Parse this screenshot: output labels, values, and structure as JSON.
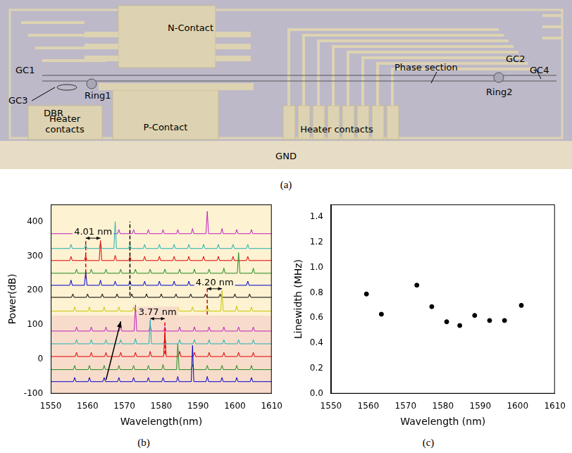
{
  "photo": {
    "caption": "(a)",
    "labels": [
      "N-Contact",
      "P-Contact",
      "Heater contacts",
      "Heater contacts",
      "GND",
      "GC1",
      "GC2",
      "GC3",
      "GC4",
      "Ring1",
      "Ring2",
      "DBR",
      "Phase section"
    ]
  },
  "chart_data": [
    {
      "type": "line",
      "caption": "(b)",
      "x_label": "Wavelength(nm)",
      "y_label": "Power(dB)",
      "xlim": [
        1550,
        1610
      ],
      "xticks": [
        1550,
        1560,
        1570,
        1580,
        1590,
        1600,
        1610
      ],
      "ylim": [
        -100,
        450
      ],
      "yticks": [
        -100,
        0,
        100,
        200,
        300,
        400
      ],
      "grid": false,
      "bands": [
        {
          "from": -100,
          "to": 128,
          "color": "#f8dccb"
        },
        {
          "from": 128,
          "to": 450,
          "color": "#fdf2d2"
        }
      ],
      "series": [
        {
          "color": "#0000cc",
          "baseline": -65,
          "peaks": [
            [
              1556.5,
              -53
            ],
            [
              1560.5,
              -53
            ],
            [
              1564.5,
              -53
            ],
            [
              1568.5,
              -53
            ],
            [
              1572.5,
              -53
            ],
            [
              1576.5,
              -53
            ],
            [
              1580.5,
              -53
            ],
            [
              1584.5,
              -50
            ],
            [
              1588.5,
              40
            ],
            [
              1592.5,
              -50
            ],
            [
              1596.5,
              -53
            ],
            [
              1600.5,
              -53
            ],
            [
              1604.5,
              -53
            ]
          ]
        },
        {
          "color": "#228b22",
          "baseline": -30,
          "peaks": [
            [
              1556.5,
              -18
            ],
            [
              1560.5,
              -18
            ],
            [
              1564.5,
              -18
            ],
            [
              1568.5,
              -18
            ],
            [
              1572.5,
              -18
            ],
            [
              1576.5,
              -18
            ],
            [
              1580.5,
              -15
            ],
            [
              1584.5,
              45
            ],
            [
              1588.5,
              -15
            ],
            [
              1592.5,
              -18
            ],
            [
              1596.5,
              -18
            ],
            [
              1600.5,
              -18
            ],
            [
              1604.5,
              -18
            ]
          ]
        },
        {
          "color": "#e00000",
          "baseline": 8,
          "peaks": [
            [
              1557,
              20
            ],
            [
              1561,
              20
            ],
            [
              1565,
              20
            ],
            [
              1569,
              20
            ],
            [
              1573,
              20
            ],
            [
              1577,
              23
            ],
            [
              1581,
              80
            ],
            [
              1585,
              23
            ],
            [
              1589,
              20
            ],
            [
              1593,
              20
            ],
            [
              1597,
              20
            ],
            [
              1601,
              20
            ],
            [
              1605,
              20
            ]
          ]
        },
        {
          "color": "#20b0b0",
          "baseline": 45,
          "peaks": [
            [
              1557,
              57
            ],
            [
              1561,
              57
            ],
            [
              1565,
              57
            ],
            [
              1569,
              57
            ],
            [
              1573,
              60
            ],
            [
              1577,
              115
            ],
            [
              1581,
              60
            ],
            [
              1585,
              57
            ],
            [
              1589,
              57
            ],
            [
              1593,
              57
            ],
            [
              1597,
              57
            ],
            [
              1601,
              57
            ],
            [
              1605,
              57
            ]
          ]
        },
        {
          "color": "#c020c0",
          "baseline": 82,
          "peaks": [
            [
              1557,
              94
            ],
            [
              1561,
              94
            ],
            [
              1565,
              94
            ],
            [
              1569,
              97
            ],
            [
              1573,
              158
            ],
            [
              1577,
              97
            ],
            [
              1581,
              94
            ],
            [
              1585,
              94
            ],
            [
              1589,
              94
            ],
            [
              1593,
              94
            ],
            [
              1597,
              94
            ],
            [
              1601,
              94
            ],
            [
              1605,
              94
            ]
          ]
        },
        {
          "color": "#c8c800",
          "baseline": 140,
          "peaks": [
            [
              1556.5,
              152
            ],
            [
              1560.5,
              152
            ],
            [
              1564.5,
              152
            ],
            [
              1568.5,
              152
            ],
            [
              1572.5,
              152
            ],
            [
              1576.5,
              152
            ],
            [
              1580.5,
              152
            ],
            [
              1584.5,
              152
            ],
            [
              1588.5,
              152
            ],
            [
              1592.5,
              155
            ],
            [
              1596.5,
              200
            ],
            [
              1600.5,
              155
            ],
            [
              1604.5,
              152
            ]
          ]
        },
        {
          "color": "#000000",
          "baseline": 180,
          "peaks": [
            [
              1556,
              190
            ],
            [
              1560,
              190
            ],
            [
              1564,
              190
            ],
            [
              1568,
              190
            ],
            [
              1572,
              190
            ],
            [
              1576,
              190
            ],
            [
              1580,
              190
            ],
            [
              1584,
              190
            ],
            [
              1588,
              190
            ],
            [
              1592,
              190
            ],
            [
              1596,
              190
            ],
            [
              1600,
              190
            ],
            [
              1604,
              190
            ]
          ]
        },
        {
          "color": "#0000cc",
          "baseline": 215,
          "peaks": [
            [
              1555.5,
              230
            ],
            [
              1559.5,
              255
            ],
            [
              1563.5,
              230
            ],
            [
              1567.5,
              227
            ],
            [
              1571.5,
              227
            ],
            [
              1575.5,
              227
            ],
            [
              1579.5,
              227
            ],
            [
              1583.5,
              227
            ],
            [
              1587.5,
              227
            ],
            [
              1591.5,
              227
            ],
            [
              1595.5,
              227
            ],
            [
              1599.5,
              227
            ],
            [
              1603.5,
              227
            ]
          ]
        },
        {
          "color": "#228b22",
          "baseline": 250,
          "peaks": [
            [
              1557,
              262
            ],
            [
              1561,
              262
            ],
            [
              1565,
              262
            ],
            [
              1569,
              262
            ],
            [
              1573,
              262
            ],
            [
              1577,
              262
            ],
            [
              1581,
              262
            ],
            [
              1585,
              262
            ],
            [
              1589,
              262
            ],
            [
              1593,
              262
            ],
            [
              1597,
              265
            ],
            [
              1601,
              310
            ],
            [
              1605,
              265
            ]
          ]
        },
        {
          "color": "#e00000",
          "baseline": 287,
          "peaks": [
            [
              1555.5,
              299
            ],
            [
              1559.5,
              302
            ],
            [
              1563.5,
              345
            ],
            [
              1567.5,
              302
            ],
            [
              1571.5,
              299
            ],
            [
              1575.5,
              299
            ],
            [
              1579.5,
              299
            ],
            [
              1583.5,
              299
            ],
            [
              1587.5,
              299
            ],
            [
              1591.5,
              299
            ],
            [
              1595.5,
              299
            ],
            [
              1599.5,
              299
            ],
            [
              1603.5,
              299
            ]
          ]
        },
        {
          "color": "#20b0b0",
          "baseline": 322,
          "peaks": [
            [
              1555.5,
              334
            ],
            [
              1559.5,
              334
            ],
            [
              1563.5,
              337
            ],
            [
              1567.5,
              400
            ],
            [
              1571.5,
              337
            ],
            [
              1575.5,
              334
            ],
            [
              1579.5,
              334
            ],
            [
              1583.5,
              334
            ],
            [
              1587.5,
              334
            ],
            [
              1591.5,
              334
            ],
            [
              1595.5,
              334
            ],
            [
              1599.5,
              334
            ],
            [
              1603.5,
              334
            ]
          ]
        },
        {
          "color": "#c020c0",
          "baseline": 365,
          "peaks": [
            [
              1556.5,
              377
            ],
            [
              1560.5,
              377
            ],
            [
              1564.5,
              377
            ],
            [
              1568.5,
              377
            ],
            [
              1572.5,
              377
            ],
            [
              1576.5,
              377
            ],
            [
              1580.5,
              377
            ],
            [
              1584.5,
              377
            ],
            [
              1588.5,
              380
            ],
            [
              1592.5,
              430
            ],
            [
              1596.5,
              380
            ],
            [
              1600.5,
              377
            ],
            [
              1604.5,
              377
            ]
          ]
        }
      ],
      "spacings": [
        {
          "text": "4.01 nm",
          "x": [
            1559.5,
            1563.5
          ],
          "y": 352
        },
        {
          "text": "4.20 nm",
          "x": [
            1592.5,
            1596.5
          ],
          "y": 205
        },
        {
          "text": "3.77 nm",
          "x": [
            1577,
            1581
          ],
          "y": 118
        }
      ],
      "dashed_lines": [
        {
          "x": 1559.5,
          "y": [
            235,
            345
          ],
          "color": "#e00000"
        },
        {
          "x": 1592.5,
          "y": [
            130,
            215
          ],
          "color": "#e00000"
        },
        {
          "x": 1581,
          "y": [
            15,
            112
          ],
          "color": "#e00000"
        },
        {
          "x": 1571.5,
          "y": [
            185,
            400
          ],
          "color": "#000000"
        }
      ],
      "arrow": {
        "from": [
          1565,
          -60
        ],
        "to": [
          1569,
          110
        ],
        "color": "#000000"
      }
    },
    {
      "type": "scatter",
      "caption": "(c)",
      "x_label": "Wavelength (nm)",
      "y_label": "Linewidth (MHz)",
      "xlim": [
        1550,
        1610
      ],
      "xticks": [
        1550,
        1560,
        1570,
        1580,
        1590,
        1600,
        1610
      ],
      "ylim": [
        0,
        1.5
      ],
      "yticks": [
        {
          "value": 0,
          "label": "0.0"
        },
        0.2,
        0.4,
        0.6,
        0.8,
        {
          "value": 1,
          "label": "1.0"
        },
        1.2,
        1.4
      ],
      "grid": false,
      "color": "#000000",
      "marker": "circle",
      "x": [
        1559.5,
        1563.5,
        1573,
        1577,
        1581,
        1584.5,
        1588.5,
        1592.5,
        1596.5,
        1601
      ],
      "values": [
        0.79,
        0.63,
        0.86,
        0.69,
        0.57,
        0.54,
        0.62,
        0.58,
        0.58,
        0.7
      ]
    }
  ]
}
